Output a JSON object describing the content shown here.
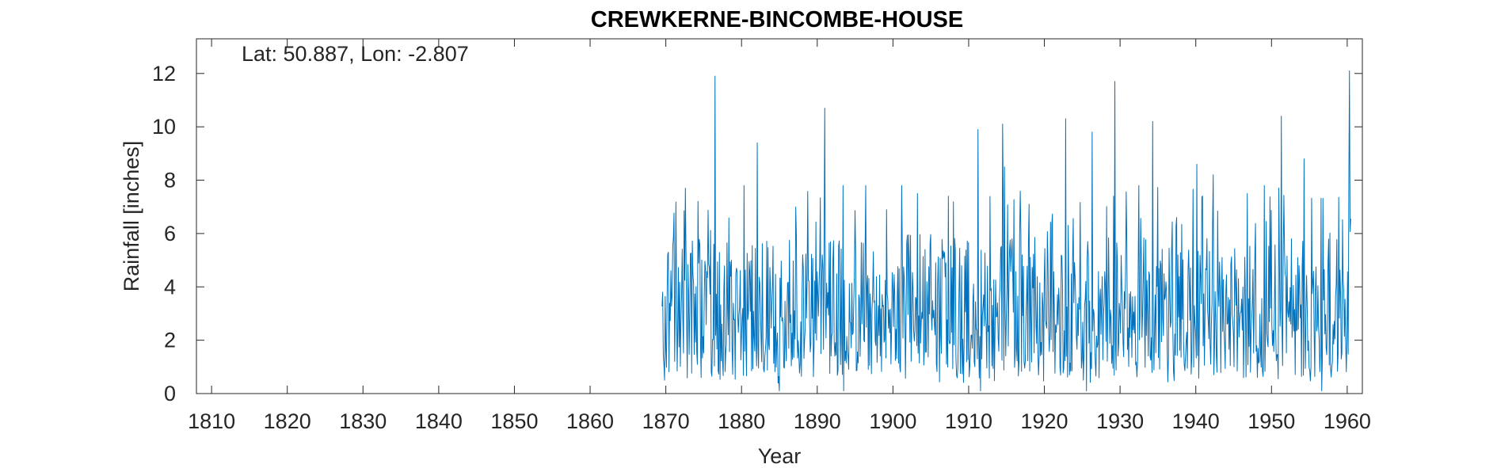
{
  "chart_data": {
    "type": "line",
    "title": "CREWKERNE-BINCOMBE-HOUSE",
    "annotation": "Lat: 50.887, Lon: -2.807",
    "xlabel": "Year",
    "ylabel": "Rainfall [inches]",
    "xlim": [
      1808,
      1962
    ],
    "ylim": [
      0,
      13.3
    ],
    "xticks": [
      1810,
      1820,
      1830,
      1840,
      1850,
      1860,
      1870,
      1880,
      1890,
      1900,
      1910,
      1920,
      1930,
      1940,
      1950,
      1960
    ],
    "xtick_labels": [
      "1810",
      "1820",
      "1830",
      "1840",
      "1850",
      "1860",
      "1870",
      "1880",
      "1890",
      "1900",
      "1910",
      "1920",
      "1930",
      "1940",
      "1950",
      "1960"
    ],
    "yticks": [
      0,
      2,
      4,
      6,
      8,
      10,
      12
    ],
    "ytick_labels": [
      "0",
      "2",
      "4",
      "6",
      "8",
      "10",
      "12"
    ],
    "grid": false,
    "line_color": "#0072BD",
    "series": [
      {
        "x_start": 1869.5,
        "x_end": 1960.5,
        "step": 0.0833,
        "notable_points": [
          {
            "x": 1869.6,
            "y": 3.8
          },
          {
            "x": 1869.8,
            "y": 0.5
          },
          {
            "x": 1870.3,
            "y": 5.3
          },
          {
            "x": 1872.6,
            "y": 7.7
          },
          {
            "x": 1874.7,
            "y": 0.6
          },
          {
            "x": 1876.5,
            "y": 11.9
          },
          {
            "x": 1882.1,
            "y": 9.4
          },
          {
            "x": 1885.0,
            "y": 0.1
          },
          {
            "x": 1887.2,
            "y": 7.0
          },
          {
            "x": 1891.0,
            "y": 10.7
          },
          {
            "x": 1893.5,
            "y": 0.1
          },
          {
            "x": 1896.4,
            "y": 7.8
          },
          {
            "x": 1903.2,
            "y": 7.5
          },
          {
            "x": 1907.3,
            "y": 7.4
          },
          {
            "x": 1911.2,
            "y": 9.9
          },
          {
            "x": 1911.6,
            "y": 0.1
          },
          {
            "x": 1914.5,
            "y": 10.1
          },
          {
            "x": 1914.7,
            "y": 8.5
          },
          {
            "x": 1918.0,
            "y": 7.1
          },
          {
            "x": 1922.8,
            "y": 10.3
          },
          {
            "x": 1925.6,
            "y": 0.1
          },
          {
            "x": 1926.3,
            "y": 9.8
          },
          {
            "x": 1929.3,
            "y": 11.7
          },
          {
            "x": 1934.3,
            "y": 10.2
          },
          {
            "x": 1937.5,
            "y": 6.6
          },
          {
            "x": 1940.1,
            "y": 8.6
          },
          {
            "x": 1942.3,
            "y": 8.2
          },
          {
            "x": 1946.8,
            "y": 7.5
          },
          {
            "x": 1951.3,
            "y": 10.4
          },
          {
            "x": 1954.3,
            "y": 8.8
          },
          {
            "x": 1956.6,
            "y": 0.1
          },
          {
            "x": 1960.3,
            "y": 12.1
          }
        ],
        "values": [
          3.8,
          1.2,
          0.5,
          2.6,
          5.3,
          3.1,
          4.2,
          1.8,
          3.6,
          2.4,
          5.7,
          2.1
        ]
      }
    ]
  }
}
